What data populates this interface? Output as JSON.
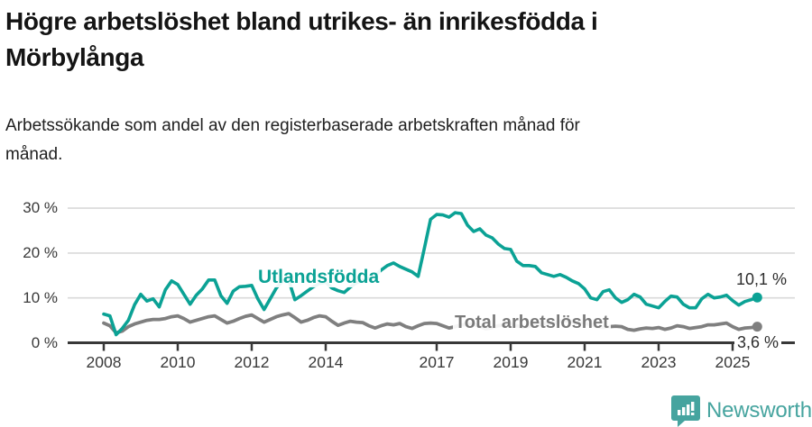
{
  "header": {
    "title": "Högre arbetslöshet bland utrikes- än inrikesfödda i\nMörbylånga",
    "subtitle": "Arbetssökande som andel av den registerbaserade arbetskraften månad för\nmånad."
  },
  "chart_data": {
    "type": "line",
    "title": "Högre arbetslöshet bland utrikes- än inrikesfödda i Mörbylånga",
    "subtitle": "Arbetssökande som andel av den registerbaserade arbetskraften månad för månad.",
    "x_unit": "year, monthly observations (6 samples per year encoded)",
    "start_year": 2008,
    "points_per_year": 6,
    "xlim": [
      2007.1,
      2026.7
    ],
    "ylim": [
      0,
      32
    ],
    "grid": "horizontal",
    "legend_position": "inline-labels",
    "ytick_values": [
      0,
      10,
      20,
      30
    ],
    "ytick_labels": [
      "0 %",
      "10 %",
      "20 %",
      "30 %"
    ],
    "xtick_years": [
      2008,
      2010,
      2012,
      2014,
      2017,
      2019,
      2021,
      2023,
      2025
    ],
    "xtick_labels": [
      "2008",
      "2010",
      "2012",
      "2014",
      "2017",
      "2019",
      "2021",
      "2023",
      "2025"
    ],
    "series": [
      {
        "name": "Total arbetslöshet",
        "color": "#7f7f7f",
        "label_color": "#7a7a7a",
        "end_value": 3.6,
        "end_label": "3,6 %",
        "values": [
          4.4,
          3.8,
          2.2,
          2.6,
          3.6,
          4.2,
          4.6,
          5.0,
          5.2,
          5.2,
          5.4,
          5.8,
          6.0,
          5.4,
          4.6,
          5.0,
          5.4,
          5.8,
          6.0,
          5.2,
          4.4,
          4.8,
          5.4,
          5.9,
          6.2,
          5.4,
          4.6,
          5.2,
          5.8,
          6.2,
          6.5,
          5.6,
          4.6,
          5.0,
          5.6,
          6.0,
          5.8,
          4.8,
          3.9,
          4.4,
          4.8,
          4.6,
          4.5,
          3.8,
          3.3,
          3.8,
          4.2,
          4.0,
          4.3,
          3.6,
          3.2,
          3.8,
          4.3,
          4.4,
          4.3,
          3.8,
          3.3,
          3.6,
          4.0,
          4.1,
          4.2,
          3.6,
          3.1,
          3.4,
          3.8,
          4.0,
          4.3,
          3.8,
          3.4,
          3.7,
          3.9,
          4.1,
          4.4,
          4.3,
          4.8,
          4.9,
          4.7,
          4.5,
          4.4,
          4.0,
          3.6,
          3.4,
          3.6,
          3.7,
          3.6,
          3.0,
          2.8,
          3.1,
          3.3,
          3.2,
          3.4,
          3.0,
          3.3,
          3.8,
          3.6,
          3.2,
          3.4,
          3.6,
          4.0,
          4.0,
          4.2,
          4.4,
          3.6,
          3.0,
          3.3,
          3.4,
          3.6
        ]
      },
      {
        "name": "Utlandsfödda",
        "color": "#0ba295",
        "label_color": "#0ba295",
        "end_value": 10.1,
        "end_label": "10,1 %",
        "values": [
          6.4,
          6.0,
          1.8,
          3.2,
          5.0,
          8.5,
          10.8,
          9.3,
          9.8,
          8.0,
          11.8,
          13.8,
          13.0,
          10.8,
          8.6,
          10.6,
          12.0,
          14.0,
          14.0,
          10.5,
          8.8,
          11.5,
          12.5,
          12.6,
          12.8,
          9.8,
          7.4,
          9.8,
          12.2,
          13.8,
          14.0,
          9.6,
          10.5,
          11.5,
          12.5,
          13.2,
          13.5,
          12.2,
          11.6,
          11.2,
          12.4,
          13.4,
          14.0,
          14.4,
          15.0,
          16.2,
          17.2,
          17.8,
          17.0,
          16.4,
          15.8,
          14.8,
          21.0,
          27.5,
          28.6,
          28.5,
          28.0,
          29.0,
          28.8,
          26.2,
          24.8,
          25.4,
          24.0,
          23.4,
          22.0,
          21.0,
          20.8,
          18.2,
          17.2,
          17.2,
          17.0,
          15.6,
          15.2,
          14.8,
          15.2,
          14.6,
          13.8,
          13.2,
          12.0,
          10.0,
          9.6,
          11.4,
          11.8,
          10.0,
          9.0,
          9.6,
          10.8,
          10.2,
          8.6,
          8.2,
          7.8,
          9.2,
          10.4,
          10.2,
          8.6,
          7.8,
          7.8,
          9.8,
          10.8,
          10.0,
          10.2,
          10.6,
          9.4,
          8.4,
          9.2,
          9.6,
          10.1
        ]
      }
    ]
  },
  "footer": {
    "brand": "Newsworthy",
    "logo_icon": "bar-chart-speech-bubble",
    "brand_color": "#46a49f"
  },
  "colors": {
    "accent_teal": "#0ba295",
    "line_gray": "#7f7f7f",
    "grid": "#d9d9d9",
    "axis": "#383838",
    "text_dark": "#141414"
  }
}
